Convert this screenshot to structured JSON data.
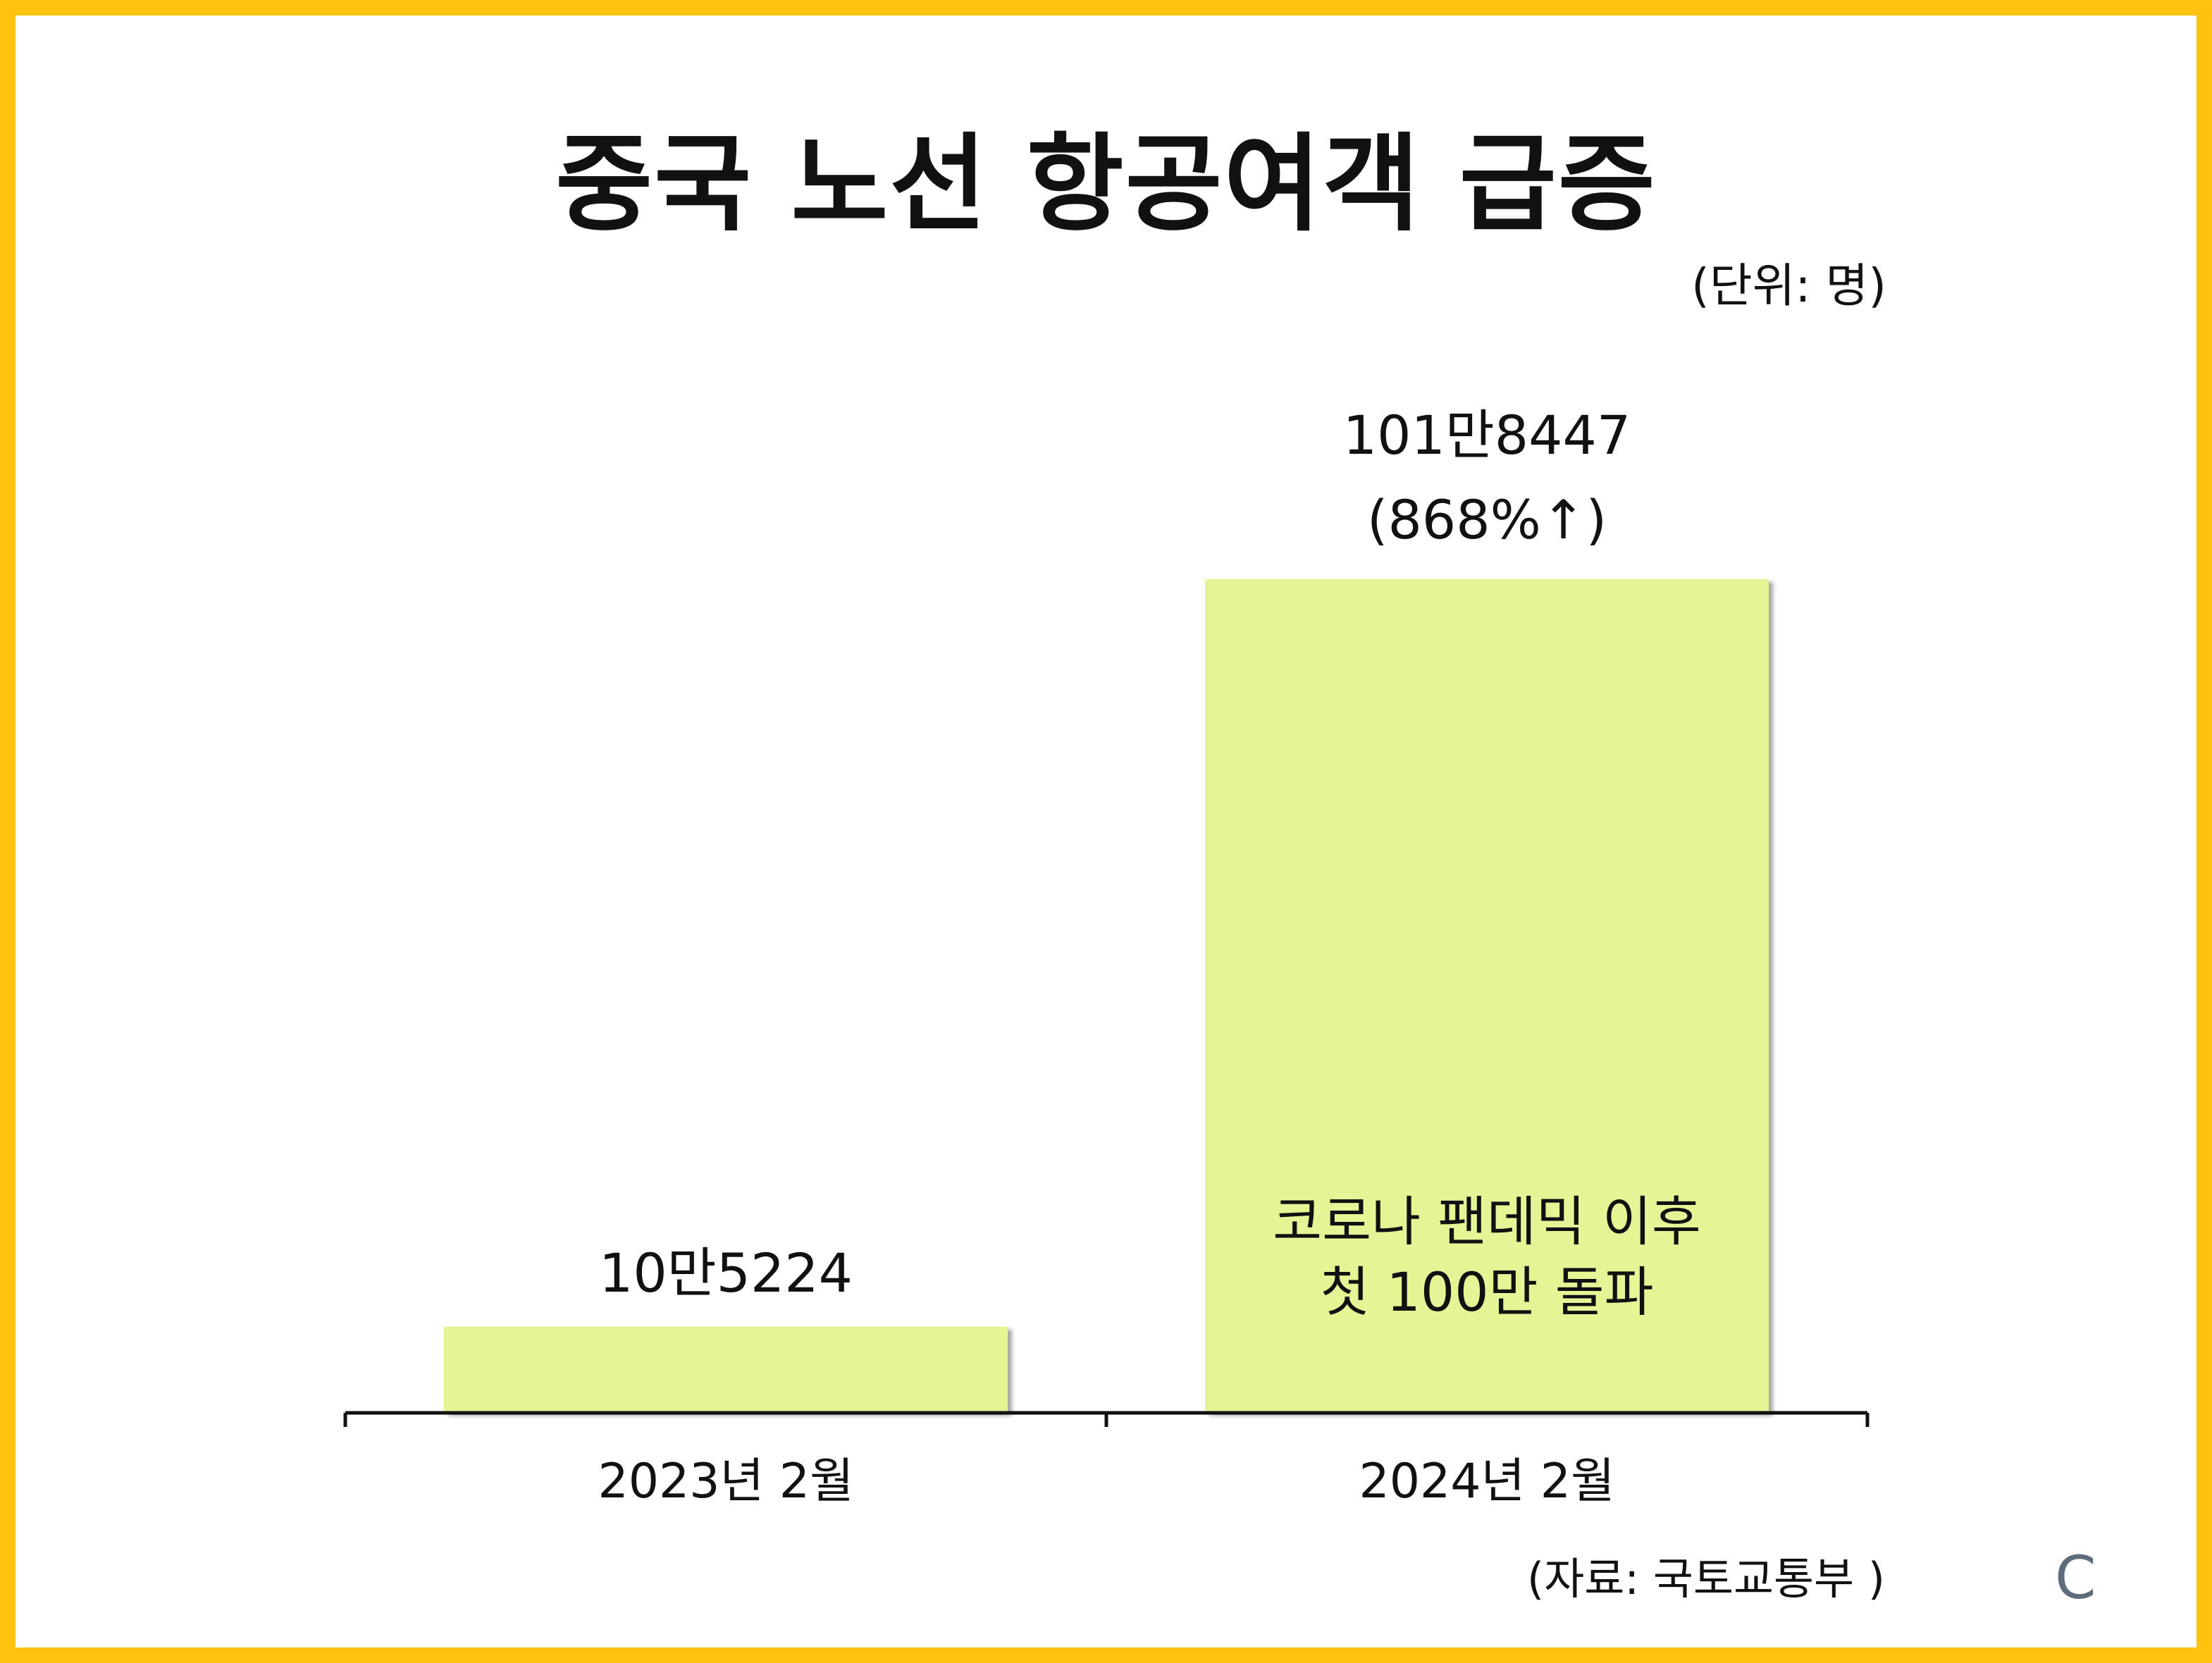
{
  "title": "중국 노선 항공여객 급증",
  "unit_label": "(단위: 명)",
  "source_label": "(자료: 국토교통부 )",
  "logo_text": "C",
  "colors": {
    "frame": "#FFC20E",
    "bar": "#E4F596",
    "axis": "#111111"
  },
  "chart_data": {
    "type": "bar",
    "title": "중국 노선 항공여객 급증",
    "categories": [
      "2023년 2월",
      "2024년 2월"
    ],
    "values": [
      105224,
      1018447
    ],
    "value_labels": [
      "10만5224",
      "101만8447"
    ],
    "change_label": "(868%↑)",
    "annotation_lines": [
      "코로나 팬데믹 이후",
      "첫 100만 돌파"
    ],
    "unit": "(단위: 명)",
    "ylim": [
      0,
      1018447
    ],
    "grid": false,
    "legend": "none"
  }
}
